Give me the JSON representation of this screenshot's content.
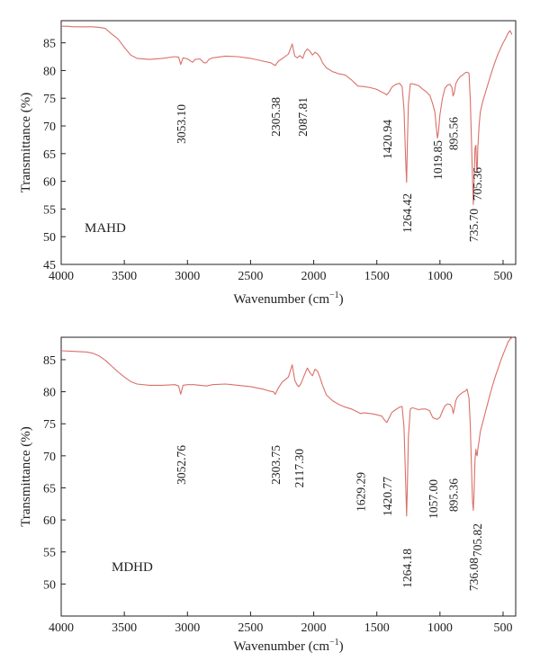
{
  "style": {
    "trace_color": "#d9706a",
    "axis_color": "#222222",
    "background": "#ffffff"
  },
  "chart_data": [
    {
      "type": "line",
      "sample_label": "MAHD",
      "xlabel": "Wavenumber (cm⁻¹)",
      "ylabel": "Transmittance (%)",
      "xlim": [
        4000,
        400
      ],
      "x_reversed": true,
      "ylim": [
        45,
        89
      ],
      "xticks": [
        4000,
        3500,
        3000,
        2500,
        2000,
        1500,
        1000,
        500
      ],
      "yticks": [
        45,
        50,
        55,
        60,
        65,
        70,
        75,
        80,
        85
      ],
      "grid": false,
      "series": [
        {
          "x": [
            4000,
            3950,
            3900,
            3850,
            3800,
            3750,
            3700,
            3650,
            3600,
            3550,
            3500,
            3450,
            3400,
            3300,
            3200,
            3100,
            3070,
            3053,
            3035,
            3000,
            2960,
            2940,
            2900,
            2870,
            2850,
            2830,
            2800,
            2700,
            2600,
            2500,
            2400,
            2340,
            2305,
            2280,
            2240,
            2200,
            2170,
            2150,
            2130,
            2110,
            2087,
            2070,
            2050,
            2030,
            2010,
            1990,
            1970,
            1950,
            1930,
            1900,
            1850,
            1800,
            1750,
            1700,
            1650,
            1600,
            1550,
            1500,
            1460,
            1440,
            1421,
            1400,
            1380,
            1350,
            1320,
            1300,
            1285,
            1272,
            1264,
            1258,
            1250,
            1235,
            1220,
            1200,
            1170,
            1140,
            1110,
            1080,
            1060,
            1040,
            1030,
            1020,
            1012,
            1000,
            980,
            960,
            940,
            920,
            905,
            896,
            887,
            875,
            860,
            840,
            820,
            800,
            785,
            770,
            760,
            750,
            742,
            736,
            730,
            722,
            715,
            710,
            705,
            700,
            690,
            680,
            660,
            640,
            620,
            600,
            580,
            560,
            540,
            520,
            500,
            480,
            460,
            445,
            430
          ],
          "y": [
            88.0,
            88.0,
            87.9,
            87.9,
            87.9,
            87.9,
            87.8,
            87.6,
            86.6,
            85.7,
            84.2,
            82.8,
            82.2,
            82.0,
            82.2,
            82.5,
            82.4,
            81.1,
            82.3,
            82.1,
            81.5,
            82.0,
            82.1,
            81.4,
            81.4,
            82.0,
            82.3,
            82.6,
            82.5,
            82.2,
            81.7,
            81.4,
            80.9,
            81.7,
            82.3,
            83.0,
            84.8,
            82.6,
            82.3,
            82.7,
            82.2,
            83.3,
            83.9,
            83.5,
            82.8,
            83.3,
            83.0,
            82.4,
            81.4,
            80.5,
            79.8,
            79.4,
            79.2,
            78.3,
            77.2,
            77.1,
            76.9,
            76.6,
            76.1,
            75.9,
            75.6,
            76.2,
            77.0,
            77.5,
            77.7,
            77.1,
            73.0,
            64.0,
            59.8,
            66.5,
            74.0,
            77.6,
            77.6,
            77.5,
            77.3,
            76.7,
            76.2,
            75.5,
            74.2,
            72.5,
            70.0,
            67.8,
            68.8,
            72.0,
            75.0,
            76.8,
            77.4,
            77.5,
            76.9,
            75.4,
            76.0,
            77.6,
            78.3,
            78.9,
            79.2,
            79.6,
            79.7,
            79.5,
            75.0,
            67.0,
            60.5,
            55.8,
            60.0,
            66.0,
            66.5,
            62.5,
            61.6,
            66.0,
            70.0,
            72.5,
            74.5,
            76.0,
            77.5,
            79.0,
            80.5,
            81.8,
            83.0,
            84.0,
            85.0,
            85.8,
            86.8,
            87.2,
            86.5
          ]
        }
      ],
      "annotations": [
        {
          "text": "3053.10",
          "x": 3053
        },
        {
          "text": "2305.38",
          "x": 2305
        },
        {
          "text": "2087.81",
          "x": 2088
        },
        {
          "text": "1420.94",
          "x": 1421
        },
        {
          "text": "1264.42",
          "x": 1264
        },
        {
          "text": "1019.85",
          "x": 1020
        },
        {
          "text": "895.56",
          "x": 896
        },
        {
          "text": "735.70",
          "x": 736
        },
        {
          "text": "705.36",
          "x": 705
        }
      ]
    },
    {
      "type": "line",
      "sample_label": "MDHD",
      "xlabel": "Wavenumber (cm⁻¹)",
      "ylabel": "Transmittance (%)",
      "xlim": [
        4000,
        400
      ],
      "x_reversed": true,
      "ylim": [
        45,
        88.5
      ],
      "xticks": [
        4000,
        3500,
        3000,
        2500,
        2000,
        1500,
        1000,
        500
      ],
      "yticks": [
        50,
        55,
        60,
        65,
        70,
        75,
        80,
        85
      ],
      "grid": false,
      "series": [
        {
          "x": [
            4000,
            3900,
            3800,
            3750,
            3700,
            3650,
            3600,
            3550,
            3500,
            3450,
            3400,
            3300,
            3200,
            3100,
            3070,
            3053,
            3035,
            3000,
            2950,
            2900,
            2850,
            2800,
            2700,
            2600,
            2500,
            2400,
            2350,
            2320,
            2304,
            2280,
            2250,
            2200,
            2170,
            2150,
            2130,
            2117,
            2100,
            2080,
            2050,
            2030,
            2010,
            1990,
            1970,
            1950,
            1930,
            1900,
            1850,
            1800,
            1750,
            1700,
            1650,
            1629,
            1600,
            1550,
            1500,
            1460,
            1440,
            1421,
            1400,
            1380,
            1350,
            1320,
            1300,
            1285,
            1272,
            1264,
            1258,
            1250,
            1235,
            1220,
            1200,
            1170,
            1140,
            1110,
            1080,
            1070,
            1057,
            1040,
            1020,
            1000,
            980,
            960,
            940,
            920,
            905,
            895,
            885,
            875,
            860,
            840,
            820,
            800,
            785,
            770,
            760,
            750,
            742,
            736,
            730,
            722,
            715,
            710,
            706,
            700,
            690,
            680,
            660,
            640,
            620,
            600,
            580,
            560,
            540,
            520,
            500,
            480,
            460,
            440,
            420
          ],
          "y": [
            86.4,
            86.3,
            86.2,
            86.0,
            85.6,
            84.9,
            84.0,
            83.1,
            82.3,
            81.6,
            81.2,
            81.0,
            81.0,
            81.1,
            80.9,
            79.6,
            81.0,
            81.1,
            81.1,
            81.0,
            80.9,
            81.1,
            81.2,
            81.0,
            80.8,
            80.4,
            80.1,
            80.0,
            79.6,
            80.6,
            81.5,
            82.3,
            84.2,
            81.8,
            81.0,
            80.8,
            81.3,
            82.3,
            83.7,
            83.0,
            82.5,
            83.5,
            83.2,
            82.2,
            81.0,
            79.5,
            78.6,
            78.0,
            77.6,
            77.3,
            76.8,
            76.6,
            76.7,
            76.6,
            76.4,
            76.2,
            75.6,
            75.2,
            76.0,
            76.8,
            77.2,
            77.6,
            77.7,
            74.5,
            66.0,
            60.6,
            65.0,
            73.0,
            77.3,
            77.5,
            77.4,
            77.2,
            77.3,
            77.3,
            77.0,
            76.5,
            76.0,
            75.8,
            75.7,
            76.0,
            77.0,
            77.8,
            78.1,
            78.0,
            77.6,
            76.6,
            77.5,
            78.6,
            79.2,
            79.6,
            79.9,
            80.1,
            80.4,
            79.0,
            75.0,
            68.0,
            63.0,
            61.5,
            64.0,
            69.5,
            71.0,
            70.2,
            70.0,
            71.0,
            72.3,
            73.8,
            75.3,
            76.8,
            78.3,
            79.8,
            81.2,
            82.5,
            83.6,
            84.8,
            85.8,
            86.8,
            87.8,
            88.3,
            88.5
          ]
        }
      ],
      "annotations": [
        {
          "text": "3052.76",
          "x": 3053
        },
        {
          "text": "2303.75",
          "x": 2304
        },
        {
          "text": "2117.30",
          "x": 2117
        },
        {
          "text": "1629.29",
          "x": 1629
        },
        {
          "text": "1420.77",
          "x": 1421
        },
        {
          "text": "1264.18",
          "x": 1264
        },
        {
          "text": "1057.00",
          "x": 1057
        },
        {
          "text": "895.36",
          "x": 895
        },
        {
          "text": "736.08",
          "x": 736
        },
        {
          "text": "705.82",
          "x": 706
        }
      ]
    }
  ]
}
